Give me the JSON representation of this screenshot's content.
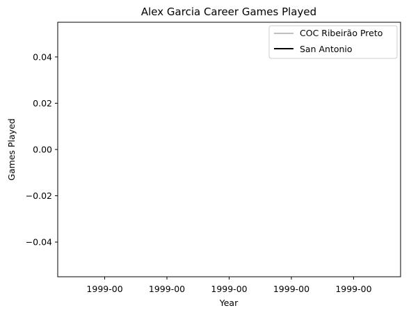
{
  "chart_data": {
    "type": "line",
    "title": "Alex Garcia  Career Games Played",
    "xlabel": "Year",
    "ylabel": "Games Played",
    "x_tick_labels": [
      "1999-00",
      "1999-00",
      "1999-00",
      "1999-00",
      "1999-00"
    ],
    "y_ticks": [
      -0.04,
      -0.02,
      0.0,
      0.02,
      0.04
    ],
    "y_tick_labels": [
      "−0.04",
      "−0.02",
      "0.00",
      "0.02",
      "0.04"
    ],
    "ylim": [
      -0.055,
      0.055
    ],
    "grid": false,
    "legend_position": "top-right",
    "series": [
      {
        "name": "COC Ribeirão Preto",
        "color": "#c0c0c0",
        "x": [],
        "y": []
      },
      {
        "name": "San Antonio",
        "color": "#000000",
        "x": [],
        "y": []
      }
    ]
  }
}
